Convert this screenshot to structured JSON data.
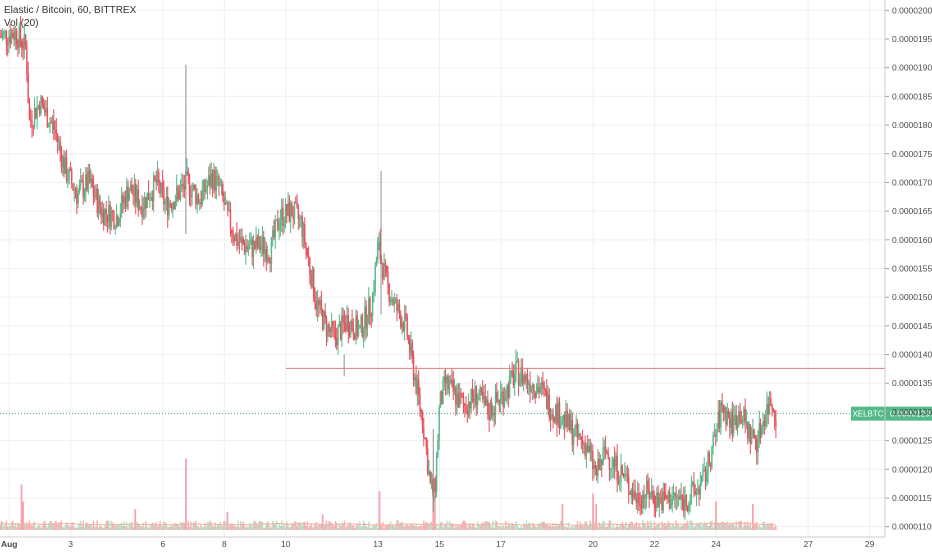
{
  "legend": {
    "symbol_line": "Elastic / Bitcoin, 60, BITTREX",
    "volume_line": "Vol (20)"
  },
  "colors": {
    "up": "#53b987",
    "down": "#eb4d5c",
    "up_volume": "#a9dcc3",
    "down_volume": "#f5a6ae",
    "grid": "#eef0f3",
    "price_line": "#5fa77a",
    "resistance_line": "#e27b7b",
    "volume_ma": "#f3b392",
    "axis_text": "#4a4a4a"
  },
  "chart_data": {
    "type": "candlestick",
    "y_axis": {
      "ticks": [
        "0.00002000",
        "0.00001950",
        "0.00001900",
        "0.00001850",
        "0.00001800",
        "0.00001750",
        "0.00001700",
        "0.00001650",
        "0.00001600",
        "0.00001550",
        "0.00001500",
        "0.00001450",
        "0.00001400",
        "0.00001350",
        "0.00001300",
        "0.00001250",
        "0.00001200",
        "0.00001150",
        "0.00001100"
      ],
      "range": [
        1.082e-05,
        2.018e-05
      ]
    },
    "x_axis": {
      "ticks": [
        "Aug",
        "3",
        "6",
        "8",
        "10",
        "13",
        "15",
        "17",
        "20",
        "22",
        "24",
        "27",
        "29"
      ],
      "day_positions": [
        1,
        3,
        6,
        8,
        10,
        13,
        15,
        17,
        20,
        22,
        24,
        27,
        29
      ],
      "range": [
        0.7,
        29.5
      ]
    },
    "last_price": {
      "symbol": "XELBTC",
      "value": "0.00001297",
      "numeric": 1.297e-05
    },
    "horizontal_line": {
      "value": 1.376e-05
    },
    "series_anchors": [
      [
        0.7,
        1955
      ],
      [
        1.2,
        1960
      ],
      [
        1.55,
        1935
      ],
      [
        1.65,
        1805
      ],
      [
        2.0,
        1840
      ],
      [
        2.5,
        1790
      ],
      [
        2.8,
        1725
      ],
      [
        3.2,
        1680
      ],
      [
        3.6,
        1700
      ],
      [
        4.0,
        1650
      ],
      [
        4.5,
        1640
      ],
      [
        4.9,
        1690
      ],
      [
        5.3,
        1660
      ],
      [
        5.8,
        1700
      ],
      [
        6.1,
        1660
      ],
      [
        6.5,
        1680
      ],
      [
        6.8,
        1700
      ],
      [
        7.2,
        1670
      ],
      [
        7.6,
        1710
      ],
      [
        7.85,
        1690
      ],
      [
        8.1,
        1640
      ],
      [
        8.4,
        1600
      ],
      [
        8.8,
        1585
      ],
      [
        9.2,
        1590
      ],
      [
        9.5,
        1580
      ],
      [
        9.8,
        1640
      ],
      [
        10.2,
        1650
      ],
      [
        10.5,
        1630
      ],
      [
        10.75,
        1560
      ],
      [
        11.0,
        1490
      ],
      [
        11.3,
        1450
      ],
      [
        11.6,
        1430
      ],
      [
        12.0,
        1460
      ],
      [
        12.4,
        1440
      ],
      [
        12.8,
        1490
      ],
      [
        13.0,
        1590
      ],
      [
        13.3,
        1520
      ],
      [
        13.6,
        1480
      ],
      [
        13.9,
        1450
      ],
      [
        14.1,
        1390
      ],
      [
        14.3,
        1330
      ],
      [
        14.5,
        1270
      ],
      [
        14.7,
        1170
      ],
      [
        14.85,
        1160
      ],
      [
        15.0,
        1310
      ],
      [
        15.2,
        1350
      ],
      [
        15.5,
        1330
      ],
      [
        15.8,
        1310
      ],
      [
        16.2,
        1330
      ],
      [
        16.6,
        1300
      ],
      [
        16.9,
        1320
      ],
      [
        17.2,
        1340
      ],
      [
        17.5,
        1370
      ],
      [
        17.9,
        1355
      ],
      [
        18.3,
        1340
      ],
      [
        18.6,
        1310
      ],
      [
        19.0,
        1290
      ],
      [
        19.4,
        1260
      ],
      [
        19.8,
        1240
      ],
      [
        20.1,
        1190
      ],
      [
        20.4,
        1230
      ],
      [
        20.8,
        1200
      ],
      [
        21.1,
        1180
      ],
      [
        21.4,
        1150
      ],
      [
        21.8,
        1160
      ],
      [
        22.2,
        1145
      ],
      [
        22.6,
        1150
      ],
      [
        23.0,
        1145
      ],
      [
        23.3,
        1160
      ],
      [
        23.6,
        1180
      ],
      [
        23.9,
        1240
      ],
      [
        24.2,
        1310
      ],
      [
        24.5,
        1280
      ],
      [
        24.8,
        1300
      ],
      [
        25.1,
        1260
      ],
      [
        25.35,
        1250
      ],
      [
        25.6,
        1300
      ],
      [
        25.8,
        1320
      ],
      [
        25.95,
        1297
      ]
    ],
    "spikes": [
      {
        "day": 6.75,
        "high": 1.905e-05,
        "low": 1.61e-05
      },
      {
        "day": 13.1,
        "high": 1.72e-05,
        "low": 1.47e-05
      },
      {
        "day": 11.9,
        "high": 1.4e-05,
        "low": 1.362e-05
      },
      {
        "day": 14.8,
        "high": 1.27e-05,
        "low": 1.125e-05
      }
    ],
    "volume_spikes": [
      {
        "day": 1.4,
        "value": 0.35
      },
      {
        "day": 1.45,
        "value": 0.22
      },
      {
        "day": 6.75,
        "value": 0.55
      },
      {
        "day": 13.05,
        "value": 0.3
      },
      {
        "day": 14.8,
        "value": 0.38
      },
      {
        "day": 14.85,
        "value": 0.25
      },
      {
        "day": 19.0,
        "value": 0.2
      },
      {
        "day": 20.0,
        "value": 0.28
      },
      {
        "day": 20.1,
        "value": 0.2
      },
      {
        "day": 24.0,
        "value": 0.22
      },
      {
        "day": 25.2,
        "value": 0.2
      },
      {
        "day": 5.1,
        "value": 0.16
      },
      {
        "day": 8.1,
        "value": 0.14
      },
      {
        "day": 11.2,
        "value": 0.12
      }
    ]
  }
}
